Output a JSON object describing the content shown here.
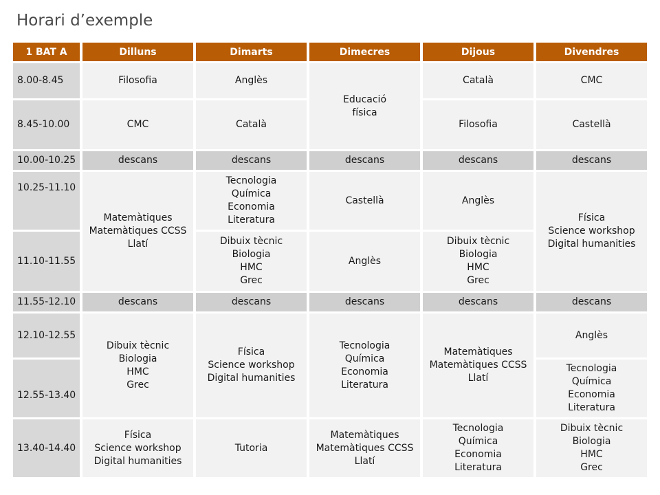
{
  "title": "Horari d’exemple",
  "header": {
    "group": "1 BAT A",
    "days": [
      "Dilluns",
      "Dimarts",
      "Dimecres",
      "Dijous",
      "Divendres"
    ]
  },
  "times": [
    "8.00-8.45",
    "8.45-10.00",
    "10.00-10.25",
    "10.25-11.10",
    "11.10-11.55",
    "11.55-12.10",
    "12.10-12.55",
    "12.55-13.40",
    "13.40-14.40"
  ],
  "break_label": "descans",
  "cells": {
    "mon_1": "Filosofia",
    "mon_2": "CMC",
    "mon_4": [
      "Matemàtiques",
      "Matemàtiques CCSS",
      "Llatí"
    ],
    "mon_7": [
      "Dibuix tècnic",
      "Biologia",
      "HMC",
      "Grec"
    ],
    "mon_9": [
      "Física",
      "Science workshop",
      "Digital humanities"
    ],
    "tue_1": "Anglès",
    "tue_2": "Català",
    "tue_4": [
      "Tecnologia",
      "Química",
      "Economia",
      "Literatura"
    ],
    "tue_5": [
      "Dibuix tècnic",
      "Biologia",
      "HMC",
      "Grec"
    ],
    "tue_7": [
      "Física",
      "Science workshop",
      "Digital humanities"
    ],
    "tue_9": "Tutoria",
    "wed_1": [
      "Educació",
      "física"
    ],
    "wed_4": "Castellà",
    "wed_5": "Anglès",
    "wed_7": [
      "Tecnologia",
      "Química",
      "Economia",
      "Literatura"
    ],
    "wed_9": [
      "Matemàtiques",
      "Matemàtiques CCSS",
      "Llatí"
    ],
    "thu_1": "Català",
    "thu_2": "Filosofia",
    "thu_4": "Anglès",
    "thu_5": [
      "Dibuix tècnic",
      "Biologia",
      "HMC",
      "Grec"
    ],
    "thu_7": [
      "Matemàtiques",
      "Matemàtiques CCSS",
      "Llatí"
    ],
    "thu_9": [
      "Tecnologia",
      "Química",
      "Economia",
      "Literatura"
    ],
    "fri_1": "CMC",
    "fri_2": "Castellà",
    "fri_4": [
      "Física",
      "Science workshop",
      "Digital humanities"
    ],
    "fri_7": "Anglès",
    "fri_8": [
      "Tecnologia",
      "Química",
      "Economia",
      "Literatura"
    ],
    "fri_9": [
      "Dibuix tècnic",
      "Biologia",
      "HMC",
      "Grec"
    ]
  }
}
